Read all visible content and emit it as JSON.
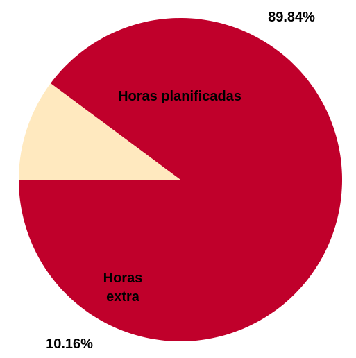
{
  "chart_data": {
    "type": "pie",
    "slices": [
      {
        "label": "Horas planificadas",
        "value": 89.84,
        "value_label": "89.84%",
        "color": "#C0002B"
      },
      {
        "label": "Horas extra",
        "value": 10.16,
        "value_label": "10.16%",
        "color": "#FFE9BF"
      }
    ],
    "start_angle_deg": 180,
    "direction": "counterclockwise",
    "legend": "none"
  }
}
